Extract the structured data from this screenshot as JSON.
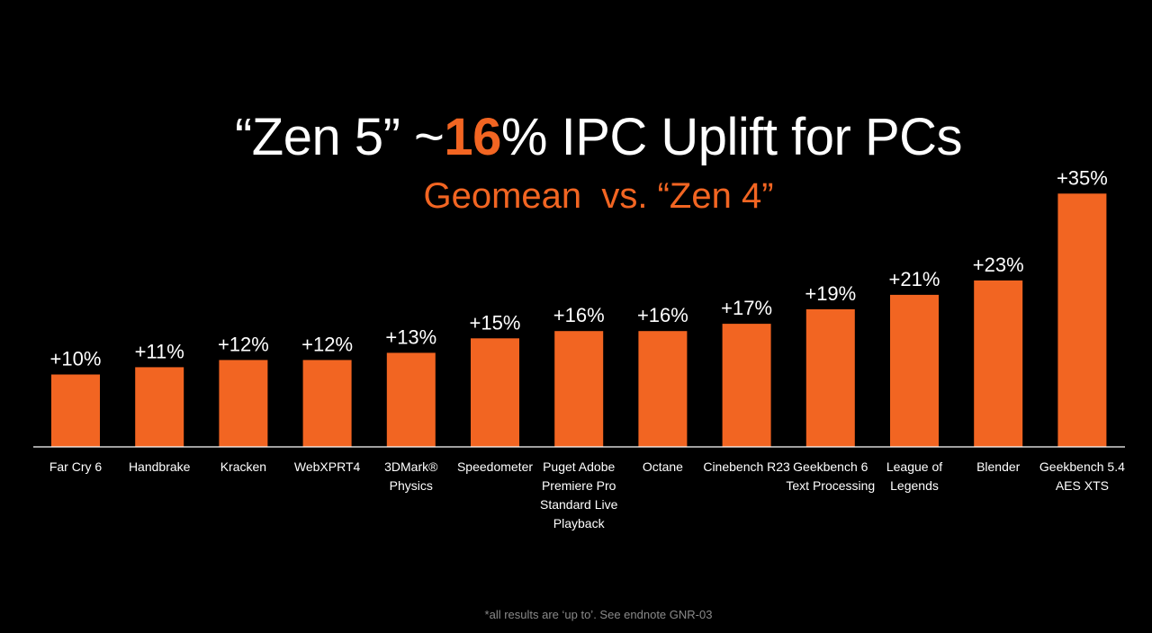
{
  "title": {
    "prefix": "“Zen 5” ~",
    "highlight": "16",
    "suffix": "% IPC Uplift for PCs"
  },
  "subtitle": "Geomean  vs. “Zen 4”",
  "footnote": "*all results are ‘up to’. See endnote GNR-03",
  "colors": {
    "background": "#000000",
    "bar": "#f26522",
    "accent": "#f26522",
    "text": "#ffffff",
    "baseline": "#ffffff",
    "footnote": "#8a8a8a"
  },
  "chart_data": {
    "type": "bar",
    "categories": [
      [
        "Far Cry 6"
      ],
      [
        "Handbrake"
      ],
      [
        "Kracken"
      ],
      [
        "WebXPRT4"
      ],
      [
        "3DMark®",
        "Physics"
      ],
      [
        "Speedometer"
      ],
      [
        "Puget Adobe",
        "Premiere Pro",
        "Standard Live",
        "Playback"
      ],
      [
        "Octane"
      ],
      [
        "Cinebench R23"
      ],
      [
        "Geekbench 6",
        "Text Processing"
      ],
      [
        "League of",
        "Legends"
      ],
      [
        "Blender"
      ],
      [
        "Geekbench 5.4",
        "AES XTS"
      ]
    ],
    "values": [
      10,
      11,
      12,
      12,
      13,
      15,
      16,
      16,
      17,
      19,
      21,
      23,
      35
    ],
    "data_labels": [
      "+10%",
      "+11%",
      "+12%",
      "+12%",
      "+13%",
      "+15%",
      "+16%",
      "+16%",
      "+17%",
      "+19%",
      "+21%",
      "+23%",
      "+35%"
    ],
    "ylim": [
      0,
      35
    ],
    "grid": false,
    "legend": "none"
  }
}
